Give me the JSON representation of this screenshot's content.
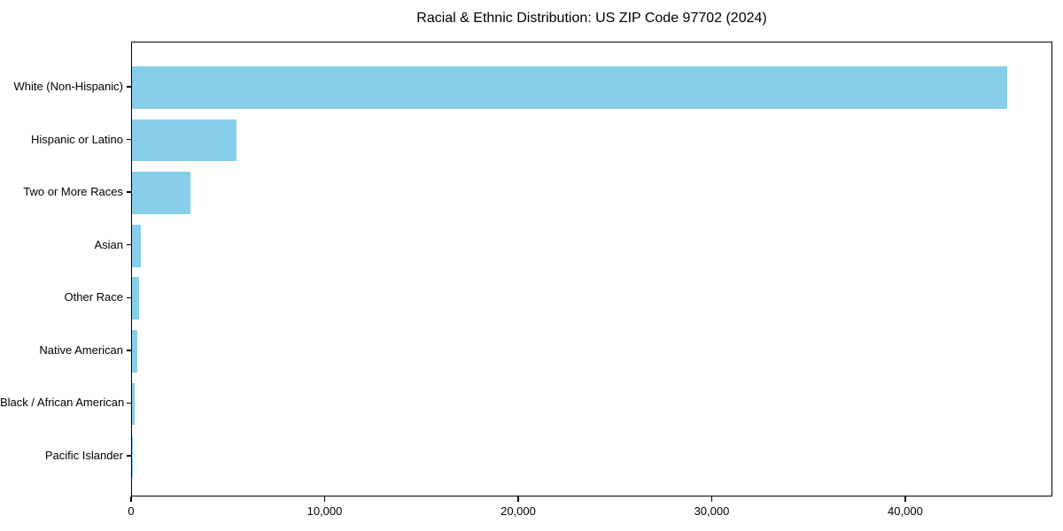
{
  "chart_data": {
    "type": "bar",
    "orientation": "horizontal",
    "title": "Racial & Ethnic Distribution: US ZIP Code 97702 (2024)",
    "categories": [
      "White (Non-Hispanic)",
      "Hispanic or Latino",
      "Two or More Races",
      "Asian",
      "Other Race",
      "Native American",
      "Black / African American",
      "Pacific Islander"
    ],
    "values": [
      45200,
      5400,
      3000,
      470,
      350,
      280,
      150,
      30
    ],
    "xlabel": "",
    "ylabel": "",
    "xlim": [
      0,
      47600
    ],
    "xticks": [
      0,
      10000,
      20000,
      30000,
      40000
    ],
    "xtick_labels": [
      "0",
      "10,000",
      "20,000",
      "30,000",
      "40,000"
    ],
    "bar_color": "#87CEEB",
    "text_color": "#000000",
    "background_color": "#ffffff",
    "grid": false,
    "legend": null
  }
}
